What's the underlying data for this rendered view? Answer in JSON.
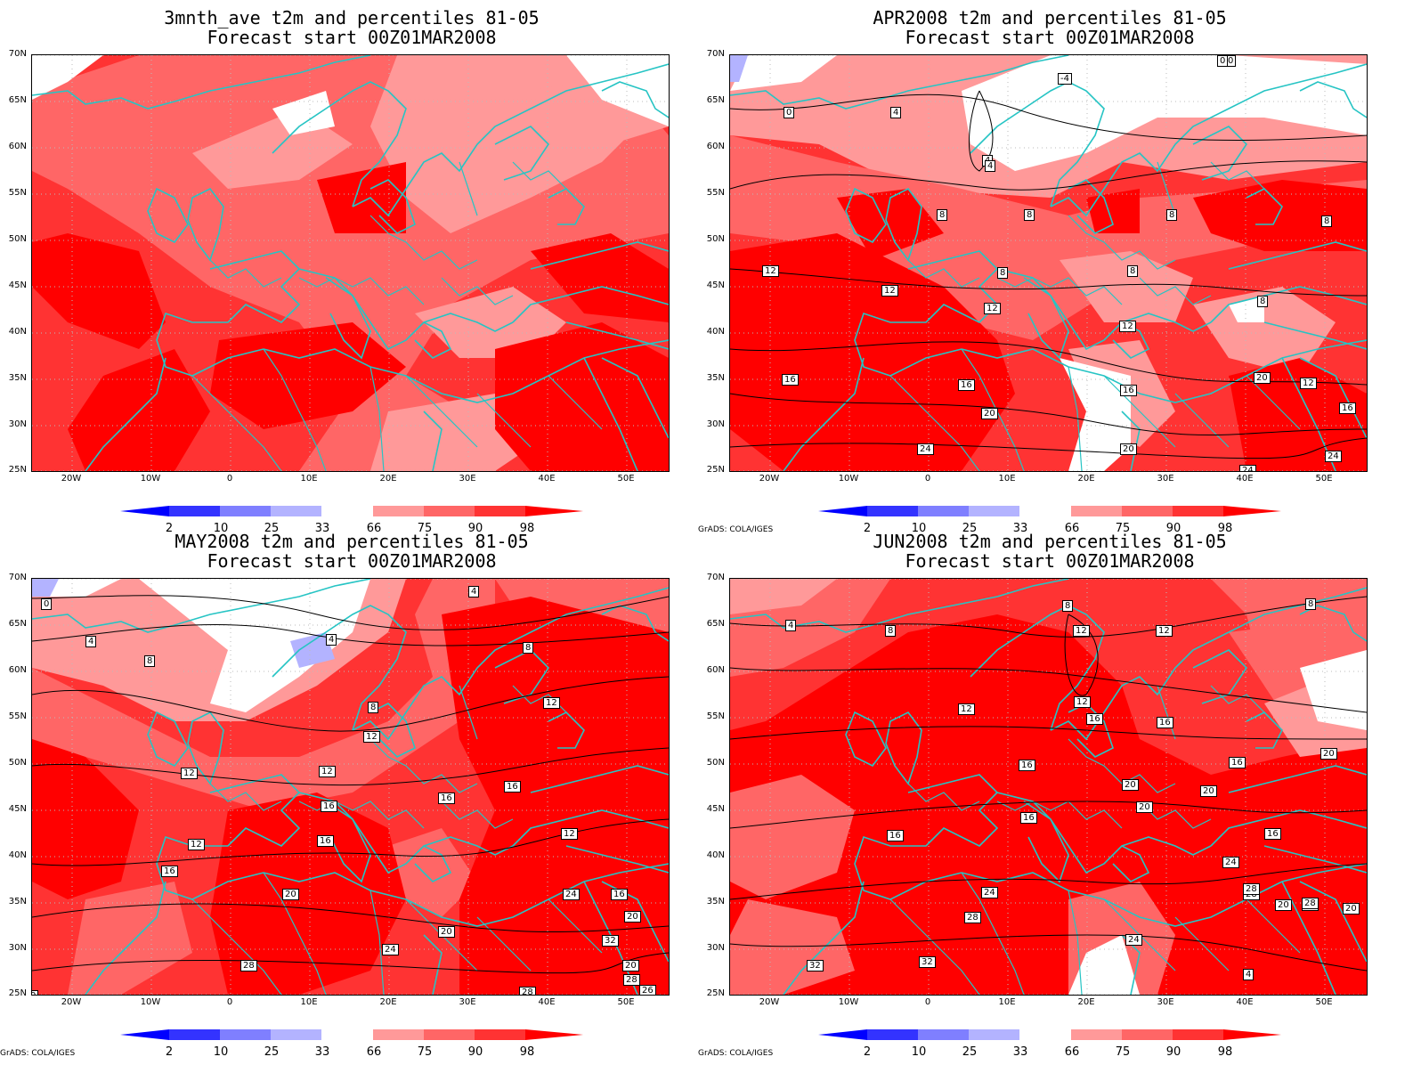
{
  "colors": {
    "p2": "#0000ff",
    "p10": "#3333ff",
    "p25": "#7f7fff",
    "p33": "#b3b3ff",
    "p66": "#ff9999",
    "p75": "#ff6666",
    "p90": "#ff3333",
    "p98": "#ff0000",
    "coast": "#26c4c4",
    "contour": "#000000"
  },
  "credit": "GrADS: COLA/IGES",
  "y_ticks": [
    "70N",
    "65N",
    "60N",
    "55N",
    "50N",
    "45N",
    "40N",
    "35N",
    "30N",
    "25N"
  ],
  "x_ticks": [
    "20W",
    "10W",
    "0",
    "10E",
    "20E",
    "30E",
    "40E",
    "50E"
  ],
  "colorbar_labels": [
    "2",
    "10",
    "25",
    "33",
    "66",
    "75",
    "90",
    "98"
  ],
  "panels": [
    {
      "title": "3mnth_ave t2m and percentiles 81-05",
      "subtitle": "Forecast start 00Z01MAR2008",
      "show_credit": false,
      "contour_labels": []
    },
    {
      "title": "APR2008 t2m and percentiles 81-05",
      "subtitle": "Forecast start 00Z01MAR2008",
      "show_credit": true,
      "contour_labels": [
        "0",
        "4",
        "-4",
        "0",
        "4",
        "4",
        "8",
        "8",
        "8",
        "8",
        "8",
        "12",
        "12",
        "12",
        "8",
        "12",
        "16",
        "16",
        "20",
        "16",
        "20",
        "24",
        "20",
        "12",
        "24",
        "16",
        "24",
        "8",
        "0"
      ]
    },
    {
      "title": "MAY2008 t2m and percentiles 81-05",
      "subtitle": "Forecast start 00Z01MAR2008",
      "show_credit": true,
      "contour_labels": [
        "0",
        "4",
        "8",
        "4",
        "4",
        "8",
        "8",
        "12",
        "12",
        "12",
        "12",
        "16",
        "16",
        "16",
        "12",
        "12",
        "16",
        "16",
        "20",
        "20",
        "24",
        "24",
        "16",
        "20",
        "32",
        "28",
        "28",
        "28",
        "26",
        "0",
        "20"
      ]
    },
    {
      "title": "JUN2008 t2m and percentiles 81-05",
      "subtitle": "Forecast start 00Z01MAR2008",
      "show_credit": true,
      "contour_labels": [
        "4",
        "8",
        "8",
        "12",
        "12",
        "12",
        "12",
        "16",
        "16",
        "16",
        "20",
        "20",
        "16",
        "20",
        "20",
        "16",
        "16",
        "16",
        "24",
        "24",
        "28",
        "28",
        "28",
        "32",
        "32",
        "24",
        "20",
        "36",
        "20",
        "28",
        "4",
        "8"
      ]
    }
  ]
}
